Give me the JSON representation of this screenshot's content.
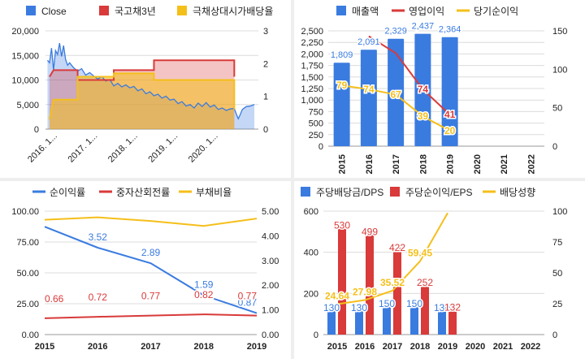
{
  "chart_data": [
    {
      "type": "line",
      "legend": [
        "Close",
        "국고채3년",
        "극채상대시가배당율"
      ],
      "legend_position": "top",
      "colors": {
        "close": "#3a7be0",
        "bond": "#d93a3a",
        "yield": "#f5bf1a"
      },
      "x_ticks": [
        "2016. 1...",
        "2017. 1...",
        "2018. 1...",
        "2019. 1...",
        "2020. 1..."
      ],
      "y_left": {
        "ticks": [
          "0",
          "5,000",
          "10,000",
          "15,000",
          "20,000"
        ],
        "range": [
          0,
          20000
        ]
      },
      "y_right": {
        "ticks": [
          "0",
          "1",
          "2",
          "3"
        ],
        "range": [
          0,
          3
        ]
      },
      "x_range": [
        2015.8,
        2021.1
      ],
      "close": [
        [
          2015.85,
          14000
        ],
        [
          2015.9,
          13500
        ],
        [
          2015.95,
          16500
        ],
        [
          2016.0,
          12000
        ],
        [
          2016.05,
          16000
        ],
        [
          2016.1,
          15200
        ],
        [
          2016.15,
          17500
        ],
        [
          2016.2,
          14800
        ],
        [
          2016.25,
          17000
        ],
        [
          2016.3,
          14200
        ],
        [
          2016.35,
          13000
        ],
        [
          2016.4,
          13500
        ],
        [
          2016.5,
          12500
        ],
        [
          2016.6,
          11800
        ],
        [
          2016.7,
          12300
        ],
        [
          2016.8,
          11000
        ],
        [
          2016.9,
          11500
        ],
        [
          2017.0,
          10800
        ],
        [
          2017.1,
          10200
        ],
        [
          2017.2,
          10700
        ],
        [
          2017.3,
          9800
        ],
        [
          2017.4,
          10100
        ],
        [
          2017.5,
          8800
        ],
        [
          2017.6,
          9300
        ],
        [
          2017.7,
          8600
        ],
        [
          2017.8,
          9000
        ],
        [
          2017.9,
          8400
        ],
        [
          2018.0,
          8700
        ],
        [
          2018.1,
          7800
        ],
        [
          2018.2,
          8200
        ],
        [
          2018.3,
          7200
        ],
        [
          2018.4,
          7600
        ],
        [
          2018.5,
          6800
        ],
        [
          2018.6,
          7100
        ],
        [
          2018.7,
          6300
        ],
        [
          2018.8,
          6700
        ],
        [
          2018.9,
          5900
        ],
        [
          2019.0,
          6100
        ],
        [
          2019.1,
          5200
        ],
        [
          2019.2,
          5600
        ],
        [
          2019.3,
          4700
        ],
        [
          2019.4,
          5000
        ],
        [
          2019.5,
          4300
        ],
        [
          2019.6,
          5300
        ],
        [
          2019.7,
          4600
        ],
        [
          2019.8,
          5400
        ],
        [
          2019.9,
          4500
        ],
        [
          2020.0,
          4900
        ],
        [
          2020.1,
          4000
        ],
        [
          2020.2,
          4300
        ],
        [
          2020.3,
          3800
        ],
        [
          2020.4,
          4100
        ],
        [
          2020.5,
          4200
        ],
        [
          2020.55,
          3100
        ],
        [
          2020.6,
          2100
        ],
        [
          2020.65,
          3000
        ],
        [
          2020.7,
          4000
        ],
        [
          2020.8,
          4600
        ],
        [
          2020.9,
          4700
        ],
        [
          2021.0,
          5000
        ]
      ],
      "bond": [
        [
          2015.9,
          1.6
        ],
        [
          2016.0,
          1.8
        ],
        [
          2016.6,
          1.8
        ],
        [
          2016.6,
          1.5
        ],
        [
          2017.5,
          1.5
        ],
        [
          2017.5,
          1.8
        ],
        [
          2018.5,
          1.8
        ],
        [
          2018.5,
          2.1
        ],
        [
          2020.5,
          2.1
        ],
        [
          2020.5,
          1.6
        ]
      ],
      "yield_series": [
        [
          2015.9,
          0.3
        ],
        [
          2016.0,
          0.9
        ],
        [
          2016.6,
          0.9
        ],
        [
          2016.6,
          1.6
        ],
        [
          2017.5,
          1.6
        ],
        [
          2017.5,
          1.7
        ],
        [
          2018.5,
          1.7
        ],
        [
          2018.5,
          1.5
        ],
        [
          2020.5,
          1.5
        ],
        [
          2020.5,
          0.6
        ]
      ]
    },
    {
      "type": "bar",
      "legend": [
        "매출액",
        "영업이익",
        "당기순이익"
      ],
      "legend_position": "top",
      "colors": {
        "revenue": "#3a7be0",
        "op": "#d93a3a",
        "net": "#f5bf1a"
      },
      "categories": [
        "2015",
        "2016",
        "2017",
        "2018",
        "2019",
        "2020",
        "2021",
        "2022"
      ],
      "revenue": [
        1809,
        2091,
        2329,
        2437,
        2364,
        null,
        null,
        null
      ],
      "revenue_labels": [
        "1,809",
        "2,091",
        "2,329",
        "2,437",
        "2,364"
      ],
      "operating_income": [
        null,
        143,
        121,
        74,
        41
      ],
      "operating_income_labels": [
        "",
        "",
        "",
        "74",
        "41"
      ],
      "net_income": [
        79,
        74,
        67,
        39,
        20
      ],
      "net_income_labels": [
        "79",
        "74",
        "67",
        "39",
        "20"
      ],
      "y_left": {
        "ticks": [
          "0",
          "250",
          "500",
          "750",
          "1,000",
          "1,250",
          "1,500",
          "1,750",
          "2,000",
          "2,250",
          "2,500"
        ],
        "range": [
          0,
          2500
        ]
      },
      "y_right": {
        "ticks": [
          "0",
          "50",
          "100",
          "150"
        ],
        "range": [
          0,
          150
        ]
      }
    },
    {
      "type": "line",
      "legend": [
        "순이익률",
        "중자산회전률",
        "부채비율"
      ],
      "legend_position": "top",
      "colors": {
        "margin": "#3a7be0",
        "turnover": "#d93a3a",
        "debt": "#f5bf1a"
      },
      "categories": [
        "2015",
        "2016",
        "2017",
        "2018",
        "2019"
      ],
      "net_margin": [
        4.37,
        3.52,
        2.89,
        1.59,
        0.87
      ],
      "net_margin_labels": [
        "",
        "3.52",
        "2.89",
        "1.59",
        "0.87"
      ],
      "asset_turnover": [
        0.66,
        0.72,
        0.77,
        0.82,
        0.77
      ],
      "asset_turnover_labels": [
        "0.66",
        "0.72",
        "0.77",
        "0.82",
        "0.77"
      ],
      "debt_ratio": [
        93,
        95,
        92,
        88,
        94
      ],
      "y_left": {
        "ticks": [
          "0.00",
          "25.00",
          "50.00",
          "75.00",
          "100.00"
        ],
        "range": [
          0,
          100
        ]
      },
      "y_right": {
        "ticks": [
          "0.00",
          "1.00",
          "2.00",
          "3.00",
          "4.00",
          "5.00"
        ],
        "range": [
          0,
          5
        ]
      }
    },
    {
      "type": "bar",
      "legend": [
        "주당배당금/DPS",
        "주당순이익/EPS",
        "배당성향"
      ],
      "legend_position": "top",
      "colors": {
        "dps": "#3a7be0",
        "eps": "#d93a3a",
        "payout": "#f5bf1a"
      },
      "categories": [
        "2015",
        "2016",
        "2017",
        "2018",
        "2019",
        "2020",
        "2021",
        "2022"
      ],
      "dps": [
        130,
        130,
        150,
        150,
        130,
        null,
        null,
        null
      ],
      "dps_labels": [
        "130",
        "130",
        "150",
        "150",
        "130"
      ],
      "eps": [
        530,
        499,
        422,
        252,
        132,
        null,
        null,
        null
      ],
      "eps_labels": [
        "530",
        "499",
        "422",
        "252",
        "132"
      ],
      "payout": [
        24.64,
        27.98,
        35.52,
        59.45,
        98.5
      ],
      "payout_labels": [
        "24.64",
        "27.98",
        "35.52",
        "59.45",
        ""
      ],
      "y_left": {
        "ticks": [
          "0",
          "200",
          "400",
          "600"
        ],
        "range": [
          0,
          600
        ]
      },
      "y_right": {
        "ticks": [
          "0",
          "25",
          "50",
          "75",
          "100"
        ],
        "range": [
          0,
          100
        ]
      }
    }
  ]
}
